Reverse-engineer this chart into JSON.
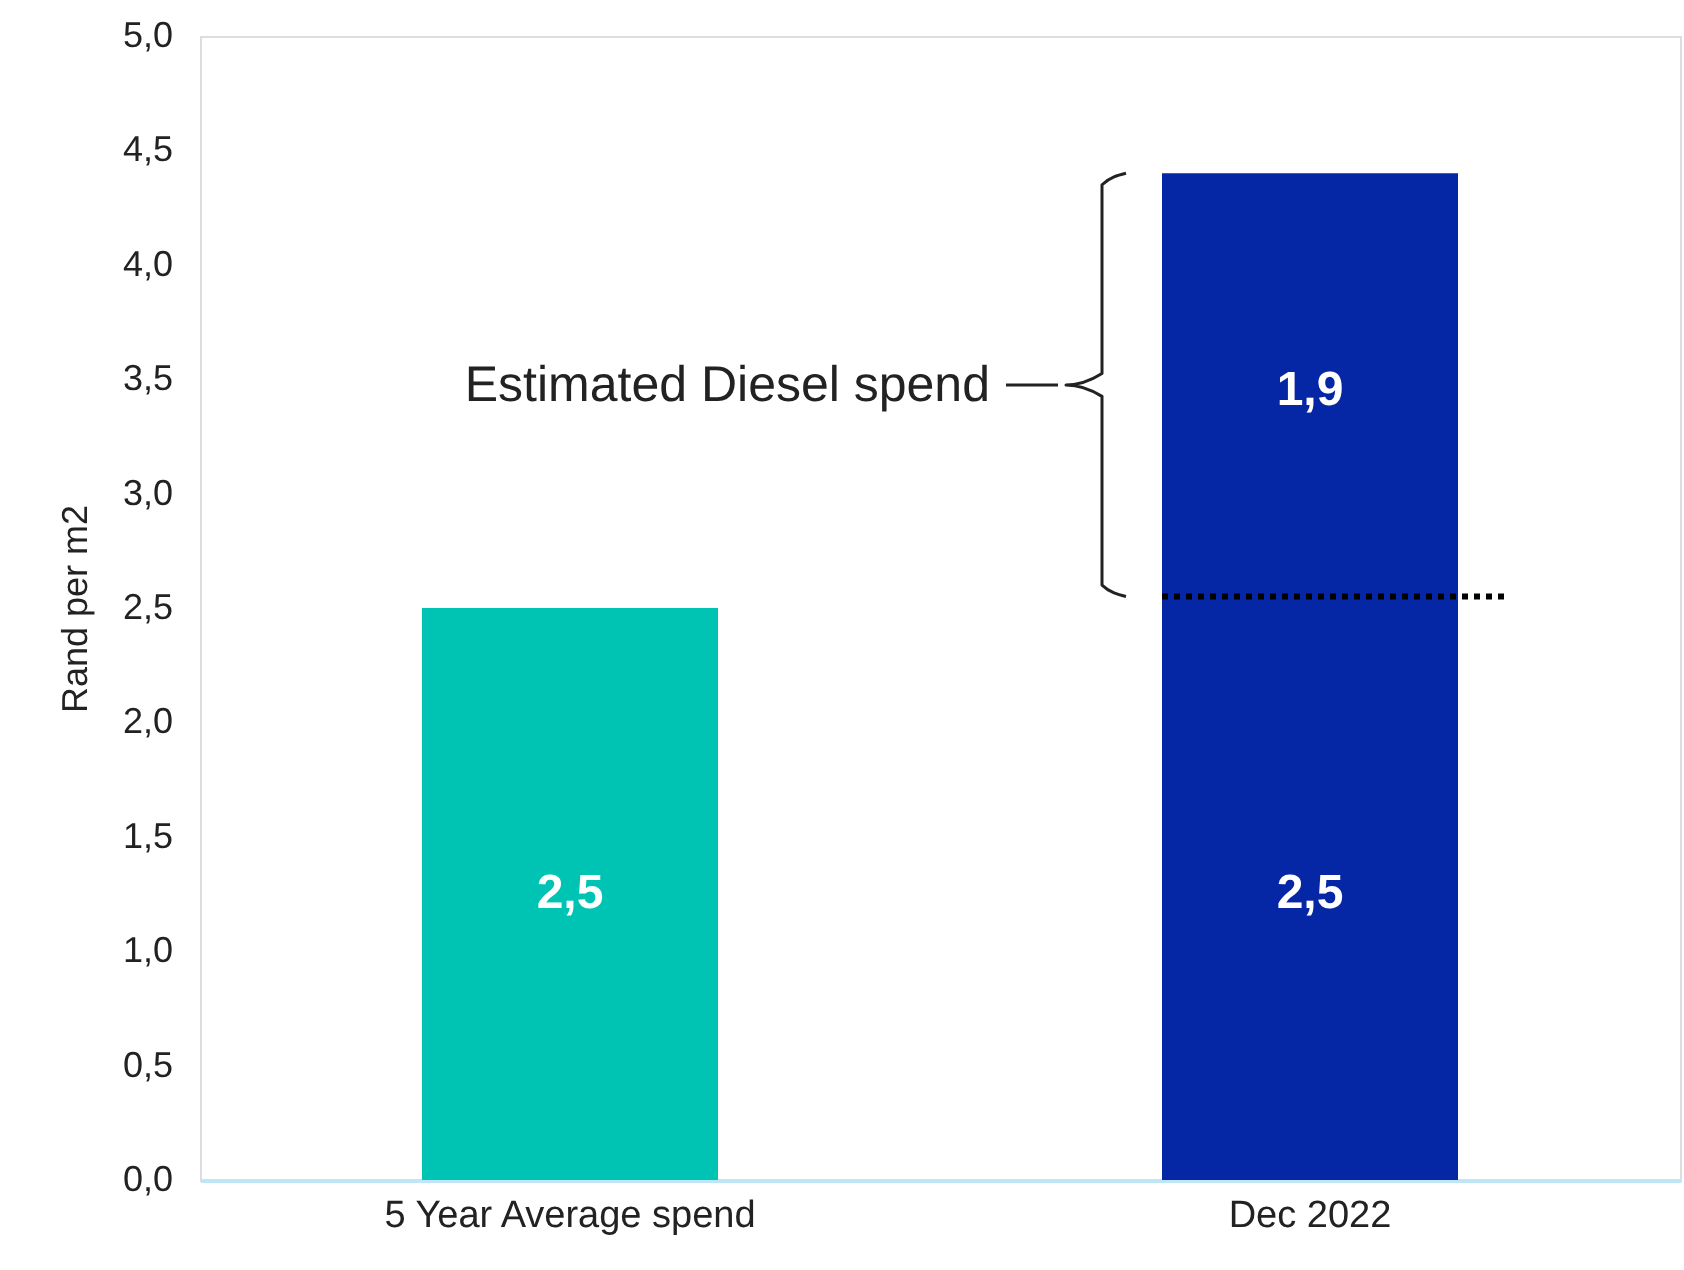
{
  "chart_data": {
    "type": "bar",
    "stacked": true,
    "ylabel": "Rand per m2",
    "categories": [
      "5 Year Average spend",
      "Dec 2022"
    ],
    "series": [
      {
        "colors": [
          "#00c4b3",
          "#0527a5"
        ],
        "values": [
          2.5,
          2.5
        ],
        "value_labels": [
          "2,5",
          "2,5"
        ]
      },
      {
        "color": "#0527a5",
        "values": [
          null,
          1.9
        ],
        "value_labels": [
          null,
          "1,9"
        ]
      }
    ],
    "ylim": [
      0,
      5
    ],
    "yticks": [
      {
        "value": 0,
        "label": "0,0"
      },
      {
        "value": 0.5,
        "label": "0,5"
      },
      {
        "value": 1,
        "label": "1,0"
      },
      {
        "value": 1.5,
        "label": "1,5"
      },
      {
        "value": 2,
        "label": "2,0"
      },
      {
        "value": 2.5,
        "label": "2,5"
      },
      {
        "value": 3,
        "label": "3,0"
      },
      {
        "value": 3.5,
        "label": "3,5"
      },
      {
        "value": 4,
        "label": "4,0"
      },
      {
        "value": 4.5,
        "label": "4,5"
      },
      {
        "value": 5,
        "label": "5,0"
      }
    ],
    "ref_lines": [
      {
        "axis": "y",
        "value": 2.55,
        "color": "#000000",
        "line_style": "dotted"
      }
    ],
    "annotations": [
      "Estimated Diesel spend"
    ],
    "grid": false
  }
}
